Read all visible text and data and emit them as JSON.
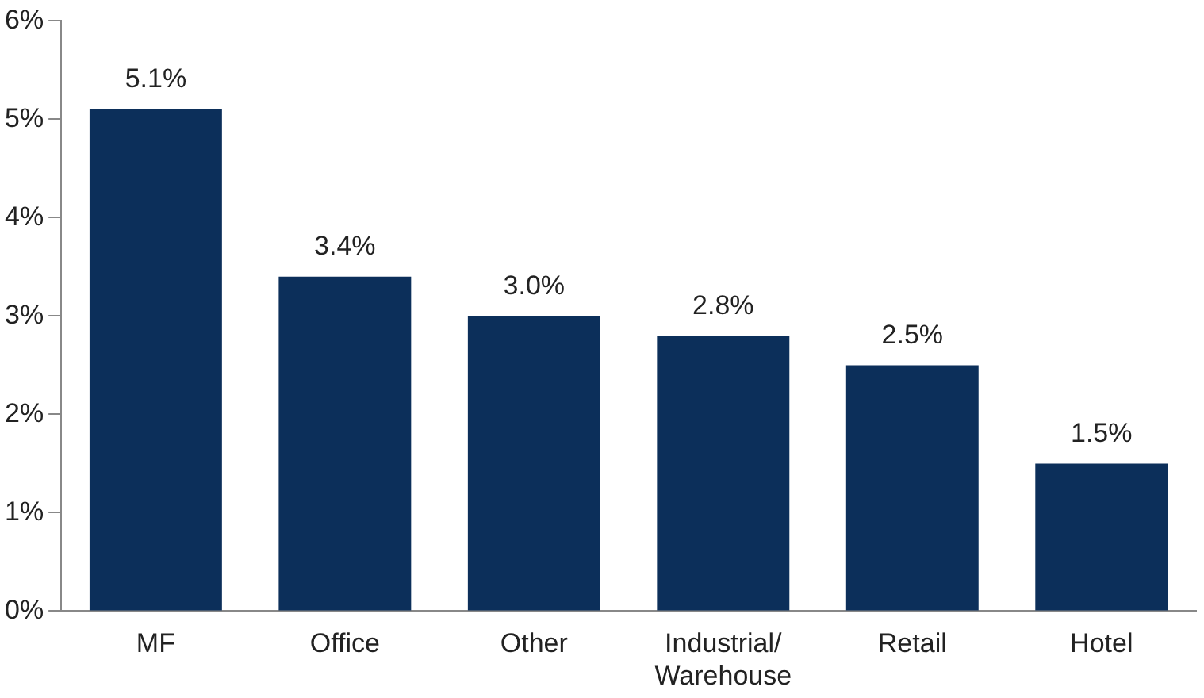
{
  "chart_data": {
    "type": "bar",
    "categories": [
      "MF",
      "Office",
      "Other",
      "Industrial/\nWarehouse",
      "Retail",
      "Hotel"
    ],
    "values": [
      5.1,
      3.4,
      3.0,
      2.8,
      2.5,
      1.5
    ],
    "value_labels": [
      "5.1%",
      "3.4%",
      "3.0%",
      "2.8%",
      "2.5%",
      "1.5%"
    ],
    "color": "#0c2f5a",
    "ylim": [
      0,
      6
    ],
    "yticks": [
      {
        "value": 0,
        "label": "0%"
      },
      {
        "value": 1,
        "label": "1%"
      },
      {
        "value": 2,
        "label": "2%"
      },
      {
        "value": 3,
        "label": "3%"
      },
      {
        "value": 4,
        "label": "4%"
      },
      {
        "value": 5,
        "label": "5%"
      },
      {
        "value": 6,
        "label": "6%"
      }
    ],
    "grid": false,
    "legend": false
  }
}
